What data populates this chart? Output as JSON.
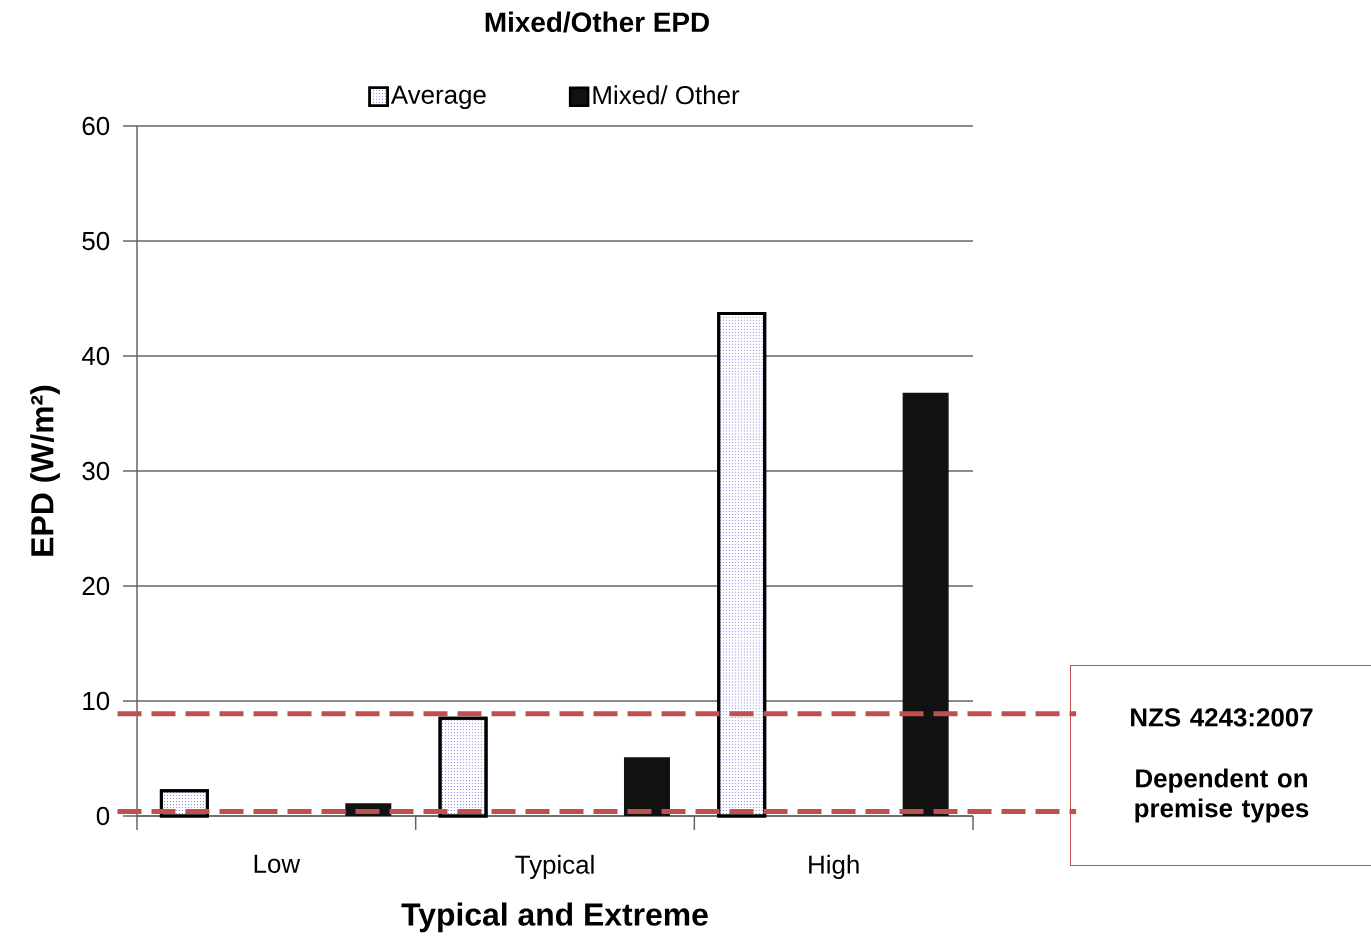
{
  "chart_data": {
    "type": "bar",
    "title": "Mixed/Other EPD",
    "xlabel": "Typical and Extreme",
    "ylabel": "EPD (W/m²)",
    "categories": [
      "Low",
      "Typical",
      "High"
    ],
    "series": [
      {
        "name": "Average",
        "color": "#ffffff",
        "values": [
          2.2,
          8.5,
          43.7
        ]
      },
      {
        "name": "Mixed/ Other",
        "color": "#111111",
        "values": [
          1.1,
          5.1,
          36.8
        ]
      }
    ],
    "ylim": [
      0,
      60
    ],
    "yticks": [
      0,
      10,
      20,
      30,
      40,
      50,
      60
    ],
    "grid": "y",
    "legend": "top",
    "ref_lines": [
      {
        "axis": "y",
        "value": 8.9,
        "color": "#c0504d",
        "line_style": "dashed"
      },
      {
        "axis": "y",
        "value": 0.4,
        "color": "#c0504d",
        "line_style": "dashed"
      }
    ],
    "annotations": [
      "NZS 4243:2007",
      "Dependent on premise types"
    ]
  }
}
